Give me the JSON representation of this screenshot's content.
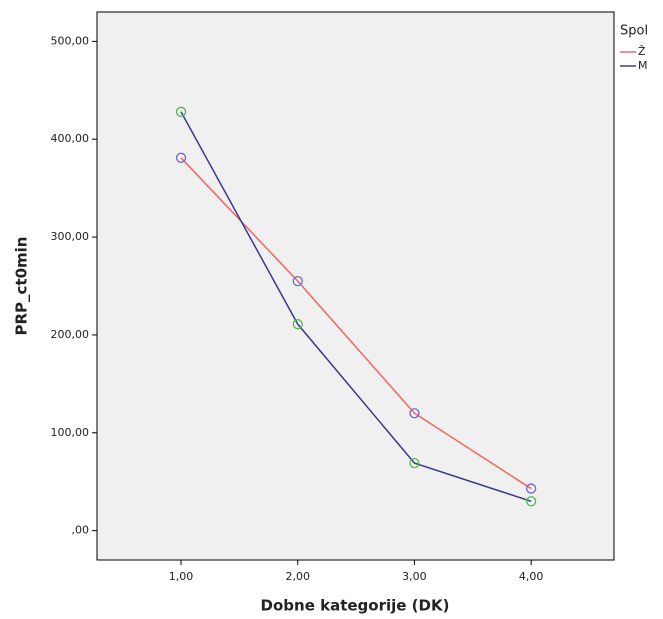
{
  "chart_data": {
    "type": "line",
    "x_label": "Dobne kategorije (DK)",
    "y_label": "PRP_ct0min",
    "legend_title": "Spol",
    "x": [
      1,
      2,
      3,
      4
    ],
    "series": [
      {
        "name": "Ž",
        "color": "#f26363",
        "marker_color": "#6a6ad0",
        "values": [
          381,
          255,
          120,
          43
        ]
      },
      {
        "name": "M",
        "color": "#3a3a8a",
        "marker_color": "#4cba4c",
        "values": [
          428,
          211,
          69,
          30
        ]
      }
    ],
    "xlim": [
      0.28,
      4.71
    ],
    "ylim": [
      -30,
      530
    ],
    "xticks": [
      {
        "value": 1,
        "label": "1,00"
      },
      {
        "value": 2,
        "label": "2,00"
      },
      {
        "value": 3,
        "label": "3,00"
      },
      {
        "value": 4,
        "label": "4,00"
      }
    ],
    "yticks": [
      {
        "value": 0,
        "label": ",00"
      },
      {
        "value": 100,
        "label": "100,00"
      },
      {
        "value": 200,
        "label": "200,00"
      },
      {
        "value": 300,
        "label": "300,00"
      },
      {
        "value": 400,
        "label": "400,00"
      },
      {
        "value": 500,
        "label": "500,00"
      }
    ],
    "plot_background": "#f0f0f0"
  }
}
